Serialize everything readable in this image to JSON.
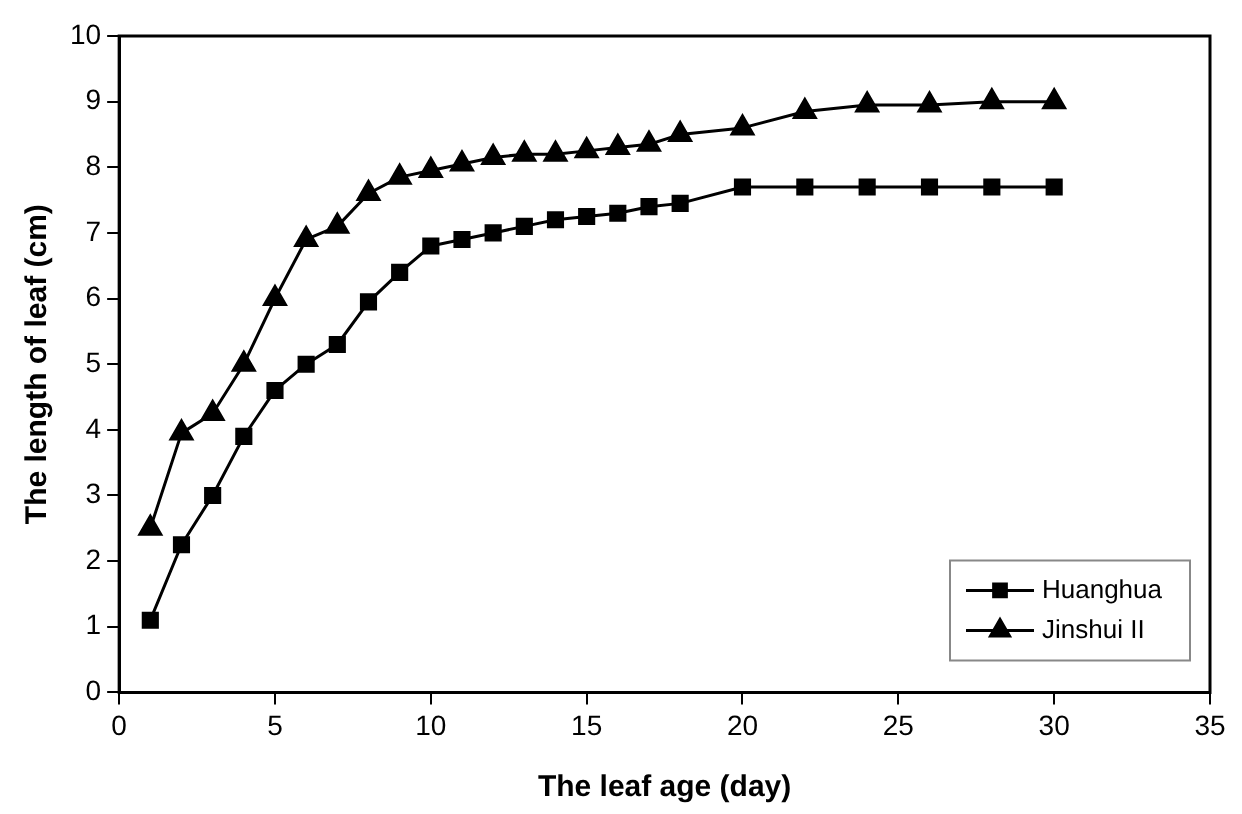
{
  "chart_data": {
    "type": "line",
    "xlabel": "The leaf age (day)",
    "ylabel": "The length of leaf (cm)",
    "xlim": [
      0,
      35
    ],
    "xticks": [
      0,
      5,
      10,
      15,
      20,
      25,
      30,
      35
    ],
    "ylim": [
      0,
      10
    ],
    "yticks": [
      0,
      1,
      2,
      3,
      4,
      5,
      6,
      7,
      8,
      9,
      10
    ],
    "x": [
      1,
      2,
      3,
      4,
      5,
      6,
      7,
      8,
      9,
      10,
      11,
      12,
      13,
      14,
      15,
      16,
      17,
      18,
      20,
      22,
      24,
      26,
      28,
      30
    ],
    "grid": false,
    "legend": "bottom right",
    "line_style": "solid",
    "series": [
      {
        "name": "Huanghua",
        "color": "#000000",
        "marker": "square",
        "values": [
          1.1,
          2.25,
          3.0,
          3.9,
          4.6,
          5.0,
          5.3,
          5.95,
          6.4,
          6.8,
          6.9,
          7.0,
          7.1,
          7.2,
          7.25,
          7.3,
          7.4,
          7.45,
          7.7,
          7.7,
          7.7,
          7.7,
          7.7,
          7.7
        ]
      },
      {
        "name": "Jinshui II",
        "color": "#000000",
        "marker": "triangle",
        "values": [
          2.5,
          3.95,
          4.25,
          5.0,
          6.0,
          6.9,
          7.1,
          7.6,
          7.85,
          7.95,
          8.05,
          8.15,
          8.2,
          8.2,
          8.25,
          8.3,
          8.35,
          8.5,
          8.6,
          8.85,
          8.95,
          8.95,
          9.0,
          9.0
        ]
      }
    ]
  }
}
